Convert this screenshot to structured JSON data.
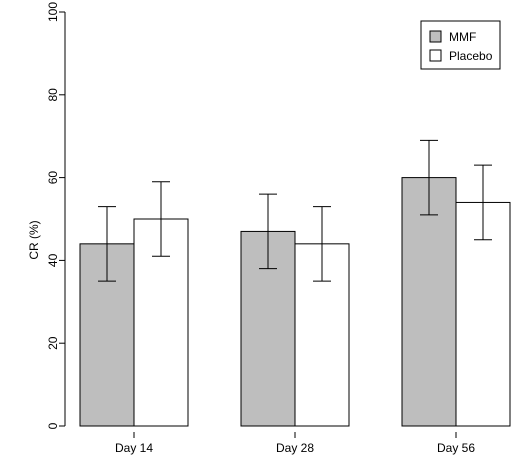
{
  "chart_data": {
    "type": "bar",
    "categories": [
      "Day 14",
      "Day 28",
      "Day 56"
    ],
    "series": [
      {
        "name": "MMF",
        "values": [
          44,
          47,
          60
        ],
        "error_low": [
          35,
          38,
          51
        ],
        "error_high": [
          53,
          56,
          69
        ],
        "color": "#bebebe"
      },
      {
        "name": "Placebo",
        "values": [
          50,
          44,
          54
        ],
        "error_low": [
          41,
          35,
          45
        ],
        "error_high": [
          59,
          53,
          63
        ],
        "color": "#ffffff"
      }
    ],
    "ylabel": "CR (%)",
    "xlabel": "",
    "title": "",
    "ylim": [
      0,
      100
    ],
    "yticks": [
      0,
      20,
      40,
      60,
      80,
      100
    ],
    "grid": false,
    "legend_position": "top-right"
  }
}
